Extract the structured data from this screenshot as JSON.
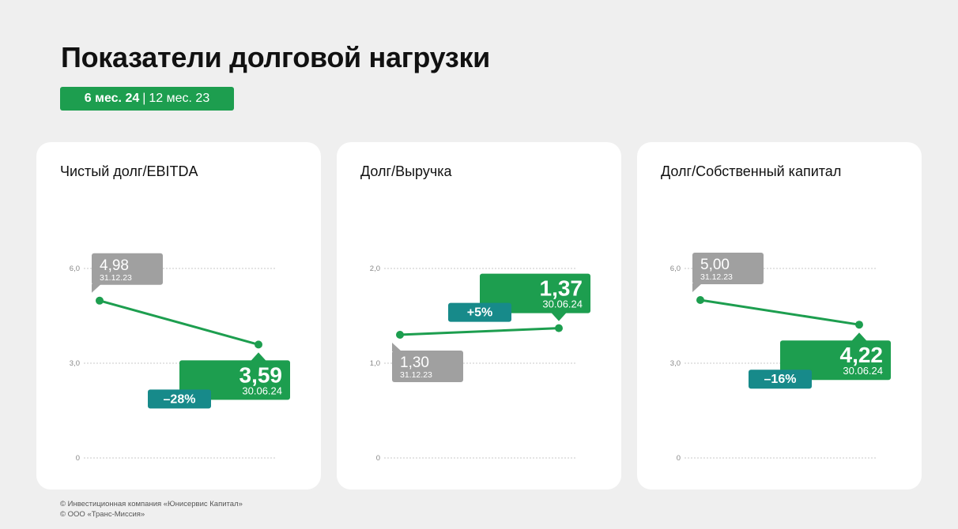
{
  "header": {
    "title": "Показатели долговой нагрузки",
    "period_active": "6 мес. 24",
    "period_separator": "|",
    "period_inactive": "12 мес. 23"
  },
  "colors": {
    "accent_green": "#1d9e4f",
    "teal": "#178a8a",
    "gray_label": "#a0a0a0",
    "line": "#1d9e4f"
  },
  "chart_data": [
    {
      "type": "line",
      "title": "Чистый долг/EBITDA",
      "ylim": [
        0,
        6
      ],
      "y_ticks": [
        "0",
        "3,0",
        "6,0"
      ],
      "y_tick_values": [
        0,
        3,
        6
      ],
      "grid": true,
      "points": [
        {
          "value": 4.98,
          "label": "4,98",
          "date": "31.12.23"
        },
        {
          "value": 3.59,
          "label": "3,59",
          "date": "30.06.24"
        }
      ],
      "change": "–28%"
    },
    {
      "type": "line",
      "title": "Долг/Выручка",
      "ylim": [
        0,
        2
      ],
      "y_ticks": [
        "0",
        "1,0",
        "2,0"
      ],
      "y_tick_values": [
        0,
        1,
        2
      ],
      "grid": true,
      "points": [
        {
          "value": 1.3,
          "label": "1,30",
          "date": "31.12.23"
        },
        {
          "value": 1.37,
          "label": "1,37",
          "date": "30.06.24"
        }
      ],
      "change": "+5%"
    },
    {
      "type": "line",
      "title": "Долг/Собственный капитал",
      "ylim": [
        0,
        6
      ],
      "y_ticks": [
        "0",
        "3,0",
        "6,0"
      ],
      "y_tick_values": [
        0,
        3,
        6
      ],
      "grid": true,
      "points": [
        {
          "value": 5.0,
          "label": "5,00",
          "date": "31.12.23"
        },
        {
          "value": 4.22,
          "label": "4,22",
          "date": "30.06.24"
        }
      ],
      "change": "–16%"
    }
  ],
  "footer": {
    "line1": "© Инвестиционная компания «Юнисервис Капитал»",
    "line2": "© ООО «Транс-Миссия»"
  }
}
